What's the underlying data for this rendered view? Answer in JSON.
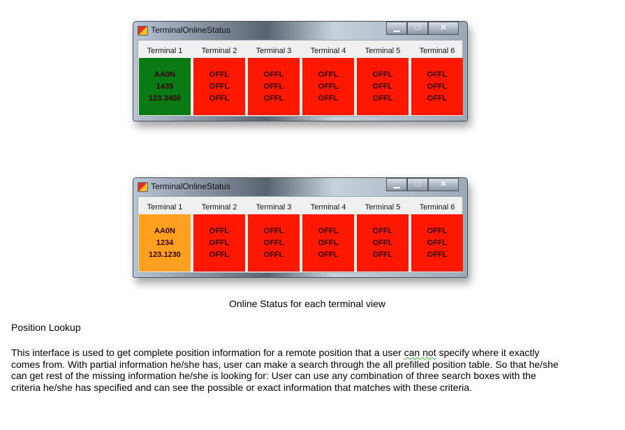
{
  "windows": [
    {
      "title": "TerminalOnlineStatus",
      "terminals": [
        {
          "label": "Terminal 1",
          "color": "#0a7a14",
          "lines": [
            "AA0N",
            "1435",
            "123.3450"
          ]
        },
        {
          "label": "Terminal 2",
          "color": "#ff1800",
          "lines": [
            "OFFL",
            "OFFL",
            "OFFL"
          ]
        },
        {
          "label": "Terminal 3",
          "color": "#ff1800",
          "lines": [
            "OFFL",
            "OFFL",
            "OFFL"
          ]
        },
        {
          "label": "Terminal 4",
          "color": "#ff1800",
          "lines": [
            "OFFL",
            "OFFL",
            "OFFL"
          ]
        },
        {
          "label": "Terminal 5",
          "color": "#ff1800",
          "lines": [
            "OFFL",
            "OFFL",
            "OFFL"
          ]
        },
        {
          "label": "Terminal 6",
          "color": "#ff1800",
          "lines": [
            "OFFL",
            "OFFL",
            "OFFL"
          ]
        }
      ]
    },
    {
      "title": "TerminalOnlineStatus",
      "terminals": [
        {
          "label": "Terminal 1",
          "color": "#ffa020",
          "lines": [
            "AA0N",
            "1234",
            "123.1230"
          ]
        },
        {
          "label": "Terminal 2",
          "color": "#ff1800",
          "lines": [
            "OFFL",
            "OFFL",
            "OFFL"
          ]
        },
        {
          "label": "Terminal 3",
          "color": "#ff1800",
          "lines": [
            "OFFL",
            "OFFL",
            "OFFL"
          ]
        },
        {
          "label": "Terminal 4",
          "color": "#ff1800",
          "lines": [
            "OFFL",
            "OFFL",
            "OFFL"
          ]
        },
        {
          "label": "Terminal 5",
          "color": "#ff1800",
          "lines": [
            "OFFL",
            "OFFL",
            "OFFL"
          ]
        },
        {
          "label": "Terminal 6",
          "color": "#ff1800",
          "lines": [
            "OFFL",
            "OFFL",
            "OFFL"
          ]
        }
      ]
    }
  ],
  "window_controls": {
    "minimize": "▁",
    "maximize": "□",
    "close": "✕"
  },
  "caption": "Online Status for each terminal view",
  "heading": "Position Lookup",
  "paragraph": {
    "line1_a": "This interface is used to get complete position information for a remote position that a user ",
    "line1_b": "can not",
    "line1_c": " specify where it exactly",
    "line2": "comes from. With partial information he/she has, user can make a search through the all prefilled position table. So that he/she",
    "line3": "can get rest of the missing information he/she is looking for: User can use any combination of three search boxes with the",
    "line4": "criteria he/she has specified and can see the possible or exact information that matches with these criteria."
  }
}
